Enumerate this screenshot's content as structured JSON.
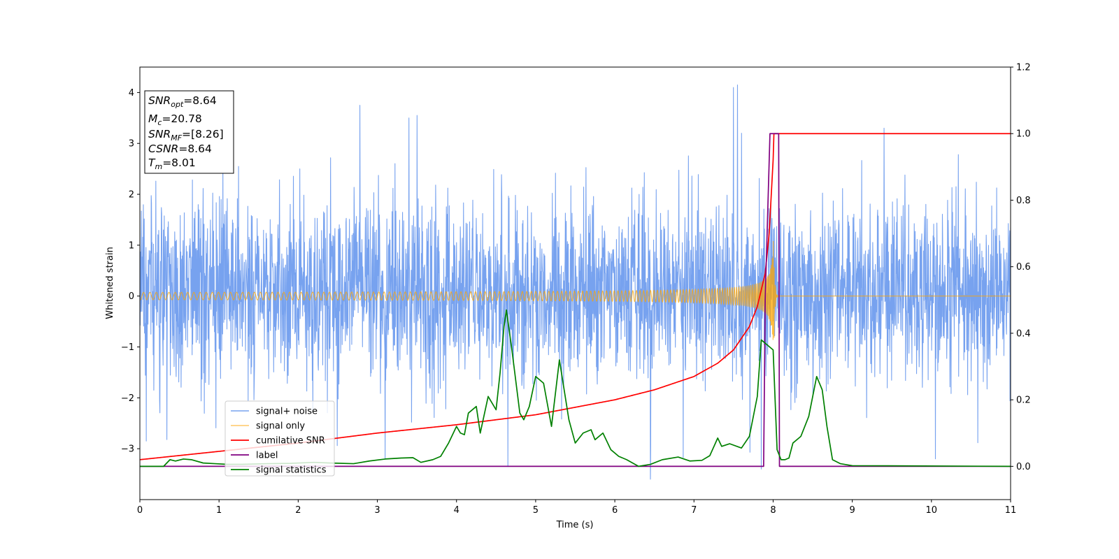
{
  "chart_data": {
    "type": "line",
    "xlabel": "Time (s)",
    "ylabel": "Whitened strain",
    "xlim": [
      0,
      11
    ],
    "ylim": [
      -4,
      4.5
    ],
    "y2lim": [
      -0.1,
      1.2
    ],
    "x_ticks": [
      "0",
      "1",
      "2",
      "3",
      "4",
      "5",
      "6",
      "7",
      "8",
      "9",
      "10",
      "11"
    ],
    "y_ticks": [
      "4",
      "3",
      "2",
      "1",
      "0",
      "−1",
      "−2",
      "−3"
    ],
    "y2_ticks": [
      "1.2",
      "1.0",
      "0.8",
      "0.6",
      "0.4",
      "0.2",
      "0.0"
    ],
    "annotation": [
      {
        "symbol": "SNR",
        "sub": "opt",
        "value": "=8.64"
      },
      {
        "symbol": "M",
        "sub": "c",
        "value": "=20.78"
      },
      {
        "symbol": "SNR",
        "sub": "MF",
        "value": "=[8.26]"
      },
      {
        "symbol": "CSNR",
        "sub": "",
        "value": "=8.64"
      },
      {
        "symbol": "T",
        "sub": "m",
        "value": "=8.01"
      }
    ],
    "legend_position": "lower-left",
    "series": [
      {
        "name": "signal+ noise",
        "axis": "left",
        "color": "#6495ED",
        "kind": "noise",
        "typical_range": [
          -1.8,
          2.0
        ],
        "peaks": [
          {
            "x": 2.78,
            "y": 3.75
          },
          {
            "x": 3.4,
            "y": 3.5
          },
          {
            "x": 3.5,
            "y": 3.55
          },
          {
            "x": 7.5,
            "y": 4.1
          },
          {
            "x": 7.55,
            "y": 4.15
          },
          {
            "x": 9.4,
            "y": 3.3
          },
          {
            "x": 4.65,
            "y": -3.35
          },
          {
            "x": 6.45,
            "y": -3.6
          },
          {
            "x": 7.85,
            "y": -3.4
          },
          {
            "x": 3.1,
            "y": -3.2
          },
          {
            "x": 10.05,
            "y": -3.2
          },
          {
            "x": 0.08,
            "y": -2.85
          },
          {
            "x": 7.6,
            "y": 3.2
          },
          {
            "x": 1.05,
            "y": 2.65
          }
        ]
      },
      {
        "name": "signal only",
        "axis": "left",
        "color": "#FFA500",
        "kind": "chirp",
        "start": 0.0,
        "merger": 8.01,
        "peak_amplitude": 1.1
      },
      {
        "name": "cumilative SNR",
        "axis": "right",
        "color": "#FF0000",
        "x": [
          0,
          1,
          2,
          3,
          4,
          5,
          6,
          6.5,
          7,
          7.3,
          7.5,
          7.7,
          7.8,
          7.9,
          7.95,
          8.0,
          8.01,
          8.02,
          9,
          10,
          11
        ],
        "y": [
          0.02,
          0.045,
          0.07,
          0.1,
          0.125,
          0.155,
          0.2,
          0.23,
          0.27,
          0.31,
          0.35,
          0.42,
          0.48,
          0.58,
          0.7,
          0.92,
          1.0,
          1.0,
          1.0,
          1.0,
          1.0
        ]
      },
      {
        "name": "label",
        "axis": "right",
        "color": "#800080",
        "x": [
          0,
          7.88,
          7.9,
          7.96,
          7.97,
          8.07,
          8.08,
          11
        ],
        "y": [
          0.0,
          0.0,
          0.5,
          1.0,
          1.0,
          1.0,
          0.0,
          0.0
        ]
      },
      {
        "name": "signal statistics",
        "axis": "right",
        "color": "#008000",
        "x": [
          0,
          0.3,
          0.38,
          0.45,
          0.55,
          0.65,
          0.8,
          0.95,
          1.1,
          1.3,
          1.6,
          1.9,
          2.2,
          2.4,
          2.7,
          2.9,
          3.1,
          3.3,
          3.45,
          3.55,
          3.7,
          3.8,
          3.9,
          4.0,
          4.05,
          4.1,
          4.15,
          4.25,
          4.3,
          4.4,
          4.5,
          4.55,
          4.6,
          4.63,
          4.7,
          4.8,
          4.85,
          4.92,
          5.0,
          5.1,
          5.2,
          5.3,
          5.42,
          5.5,
          5.6,
          5.7,
          5.75,
          5.85,
          5.95,
          6.05,
          6.15,
          6.3,
          6.45,
          6.6,
          6.8,
          6.95,
          7.1,
          7.2,
          7.3,
          7.35,
          7.45,
          7.6,
          7.7,
          7.8,
          7.85,
          7.9,
          7.95,
          8.0,
          8.05,
          8.1,
          8.15,
          8.2,
          8.25,
          8.35,
          8.45,
          8.55,
          8.62,
          8.68,
          8.75,
          8.85,
          9.0,
          11
        ],
        "y": [
          0.0,
          0.0,
          0.02,
          0.016,
          0.022,
          0.02,
          0.01,
          0.008,
          0.006,
          0.006,
          0.008,
          0.009,
          0.012,
          0.01,
          0.008,
          0.016,
          0.022,
          0.025,
          0.026,
          0.012,
          0.02,
          0.03,
          0.07,
          0.12,
          0.1,
          0.095,
          0.16,
          0.18,
          0.1,
          0.21,
          0.17,
          0.28,
          0.42,
          0.47,
          0.35,
          0.16,
          0.14,
          0.18,
          0.27,
          0.25,
          0.12,
          0.32,
          0.14,
          0.07,
          0.1,
          0.11,
          0.08,
          0.1,
          0.05,
          0.03,
          0.02,
          0.0,
          0.006,
          0.02,
          0.028,
          0.016,
          0.018,
          0.032,
          0.085,
          0.06,
          0.068,
          0.055,
          0.09,
          0.21,
          0.38,
          0.37,
          0.36,
          0.35,
          0.05,
          0.02,
          0.02,
          0.025,
          0.07,
          0.09,
          0.15,
          0.27,
          0.23,
          0.12,
          0.02,
          0.008,
          0.002,
          0.0
        ]
      }
    ]
  }
}
